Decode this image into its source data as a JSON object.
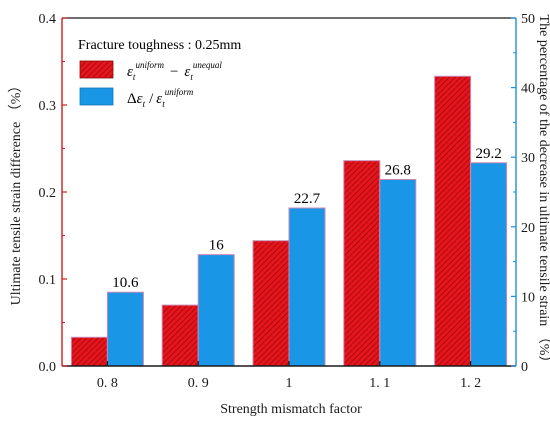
{
  "chart_data": {
    "type": "bar",
    "xlabel": "Strength mismatch factor",
    "ylabel_left": "Ultimate tensile strain difference （%）",
    "ylabel_right": "The percentage of the decrease in ultimate tensile strain （%）",
    "categories": [
      "0. 8",
      "0. 9",
      "1",
      "1. 1",
      "1. 2"
    ],
    "ylim_left": [
      0,
      0.4
    ],
    "yticks_left": [
      "0.0",
      "0.1",
      "0.2",
      "0.3",
      "0.4"
    ],
    "ylim_right": [
      0,
      50
    ],
    "yticks_right": [
      "0",
      "10",
      "20",
      "30",
      "40",
      "50"
    ],
    "legend": {
      "title": "Fracture toughness : 0.25mm",
      "placement": "top-left"
    },
    "series": [
      {
        "axis": "left",
        "values": [
          0.033,
          0.07,
          0.144,
          0.236,
          0.333
        ],
        "color": "#e8141c",
        "hatch": true
      },
      {
        "axis": "right",
        "values": [
          10.6,
          16,
          22.7,
          26.8,
          29.2
        ],
        "labels": [
          "10.6",
          "16",
          "22.7",
          "26.8",
          "29.2"
        ],
        "color": "#1a96e6"
      }
    ],
    "grid": false
  },
  "colors": {
    "axis_left": "#d01c1c",
    "axis_right": "#1e8fdc",
    "axis_bottom": "#1a1a1a"
  }
}
